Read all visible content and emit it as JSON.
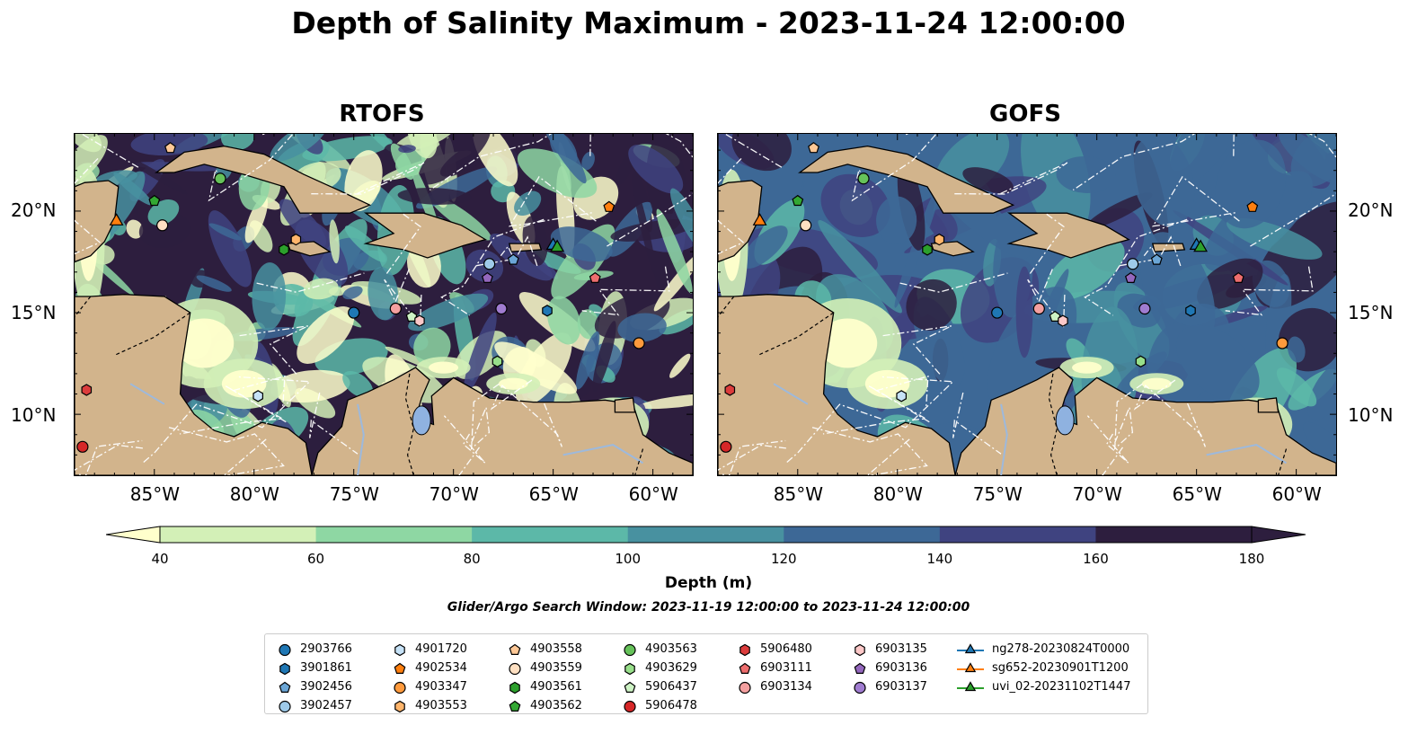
{
  "title": "Depth of Salinity Maximum - 2023-11-24 12:00:00",
  "panels": [
    {
      "title": "RTOFS"
    },
    {
      "title": "GOFS"
    }
  ],
  "lon_ticks": [
    "85°W",
    "80°W",
    "75°W",
    "70°W",
    "65°W",
    "60°W"
  ],
  "lat_ticks": [
    "20°N",
    "15°N",
    "10°N"
  ],
  "colorbar": {
    "label": "Depth (m)",
    "ticks": [
      "40",
      "60",
      "80",
      "100",
      "120",
      "140",
      "160",
      "180"
    ],
    "colors": [
      "#ffffcc",
      "#d3f0b7",
      "#8ed7a3",
      "#5cb8a8",
      "#4891a0",
      "#3d6896",
      "#3f4380",
      "#2d1e3e"
    ],
    "extend": "both"
  },
  "search_window": "Glider/Argo Search Window: 2023-11-19 12:00:00 to 2023-11-24 12:00:00",
  "land_color": "#d2b48c",
  "legend": {
    "columns": [
      [
        {
          "label": "2903766",
          "marker": "circle",
          "color": "#1f77b4"
        },
        {
          "label": "3901861",
          "marker": "hexagon",
          "color": "#1f77b4"
        },
        {
          "label": "3902456",
          "marker": "pentagon",
          "color": "#6ba6d6"
        },
        {
          "label": "3902457",
          "marker": "circle",
          "color": "#9ecae9"
        }
      ],
      [
        {
          "label": "4901720",
          "marker": "hexagon",
          "color": "#c6e2f7"
        },
        {
          "label": "4902534",
          "marker": "pentagon",
          "color": "#ff7f0e"
        },
        {
          "label": "4903347",
          "marker": "circle",
          "color": "#ff9a3c"
        },
        {
          "label": "4903553",
          "marker": "hexagon",
          "color": "#ffb56b"
        }
      ],
      [
        {
          "label": "4903558",
          "marker": "pentagon",
          "color": "#ffc896"
        },
        {
          "label": "4903559",
          "marker": "circle",
          "color": "#ffe0c2"
        },
        {
          "label": "4903561",
          "marker": "hexagon",
          "color": "#2ca02c"
        },
        {
          "label": "4903562",
          "marker": "pentagon",
          "color": "#33a833"
        }
      ],
      [
        {
          "label": "4903563",
          "marker": "circle",
          "color": "#66c25a"
        },
        {
          "label": "4903629",
          "marker": "hexagon",
          "color": "#98df8a"
        },
        {
          "label": "5906437",
          "marker": "pentagon",
          "color": "#cdf2c4"
        },
        {
          "label": "5906478",
          "marker": "circle",
          "color": "#d62728"
        }
      ],
      [
        {
          "label": "5906480",
          "marker": "hexagon",
          "color": "#dc3c3c"
        },
        {
          "label": "6903111",
          "marker": "pentagon",
          "color": "#ee6e6e"
        },
        {
          "label": "6903134",
          "marker": "circle",
          "color": "#f4a0a0"
        }
      ],
      [
        {
          "label": "6903135",
          "marker": "hexagon",
          "color": "#fcc8c8"
        },
        {
          "label": "6903136",
          "marker": "pentagon",
          "color": "#9467bd"
        },
        {
          "label": "6903137",
          "marker": "circle",
          "color": "#a07cd0"
        }
      ],
      [
        {
          "label": "ng278-20230824T0000",
          "marker": "triangle",
          "color": "#1f77b4"
        },
        {
          "label": "sg652-20230901T1200",
          "marker": "triangle",
          "color": "#ff7f0e"
        },
        {
          "label": "uvi_02-20231102T1447",
          "marker": "triangle",
          "color": "#2ca02c"
        }
      ]
    ]
  },
  "observations": [
    {
      "id": "2903766",
      "lon": -75.0,
      "lat": 15.0
    },
    {
      "id": "3901861",
      "lon": -65.3,
      "lat": 15.1
    },
    {
      "id": "3902456",
      "lon": -67.0,
      "lat": 17.6
    },
    {
      "id": "3902457",
      "lon": -68.2,
      "lat": 17.4
    },
    {
      "id": "4901720",
      "lon": -79.8,
      "lat": 10.9
    },
    {
      "id": "4902534",
      "lon": -62.2,
      "lat": 20.2
    },
    {
      "id": "4903347",
      "lon": -60.7,
      "lat": 13.5
    },
    {
      "id": "4903553",
      "lon": -77.9,
      "lat": 18.6
    },
    {
      "id": "4903558",
      "lon": -84.2,
      "lat": 23.1
    },
    {
      "id": "4903559",
      "lon": -84.6,
      "lat": 19.3
    },
    {
      "id": "4903561",
      "lon": -78.5,
      "lat": 18.1
    },
    {
      "id": "4903562",
      "lon": -85.0,
      "lat": 20.5
    },
    {
      "id": "4903563",
      "lon": -81.7,
      "lat": 21.6
    },
    {
      "id": "4903629",
      "lon": -67.8,
      "lat": 12.6
    },
    {
      "id": "5906437",
      "lon": -72.1,
      "lat": 14.8
    },
    {
      "id": "5906478",
      "lon": -88.6,
      "lat": 8.4
    },
    {
      "id": "5906480",
      "lon": -88.4,
      "lat": 11.2
    },
    {
      "id": "6903111",
      "lon": -62.9,
      "lat": 16.7
    },
    {
      "id": "6903134",
      "lon": -72.9,
      "lat": 15.2
    },
    {
      "id": "6903135",
      "lon": -71.7,
      "lat": 14.6
    },
    {
      "id": "6903136",
      "lon": -68.3,
      "lat": 16.7
    },
    {
      "id": "6903137",
      "lon": -67.6,
      "lat": 15.2
    },
    {
      "id": "ng278-20230824T0000",
      "lon": -65.0,
      "lat": 18.3
    },
    {
      "id": "sg652-20230901T1200",
      "lon": -86.9,
      "lat": 19.5
    },
    {
      "id": "uvi_02-20231102T1447",
      "lon": -64.8,
      "lat": 18.2
    }
  ]
}
